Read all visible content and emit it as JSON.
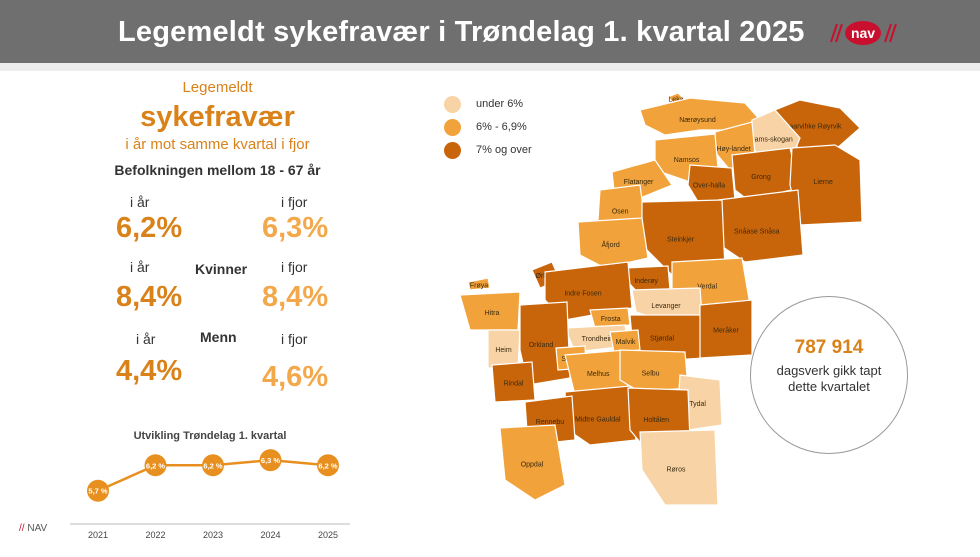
{
  "header": {
    "title": "Legemeldt sykefravær i Trøndelag 1. kvartal 2025",
    "logo_text": "nav"
  },
  "colors": {
    "header_bg": "#6f6f6f",
    "orange_dark": "#c8650a",
    "orange_mid": "#f2a23a",
    "orange_light": "#f8d3a5",
    "accent": "#d9821a",
    "nav_red": "#c8102e"
  },
  "left_panel": {
    "line1": "Legemeldt",
    "line2": "sykefravær",
    "line3": "i år mot samme kvartal i fjor",
    "population": "Befolkningen mellom 18 - 67 år",
    "label_this_year": "i år",
    "label_last_year": "i fjor",
    "total": {
      "this_year": "6,2%",
      "last_year": "6,3%"
    },
    "women": {
      "label": "Kvinner",
      "this_year": "8,4%",
      "last_year": "8,4%"
    },
    "men": {
      "label": "Menn",
      "this_year": "4,4%",
      "last_year": "4,6%"
    }
  },
  "chart_data": {
    "type": "line",
    "title": "Utvikling Trøndelag 1. kvartal",
    "categories": [
      "2021",
      "2022",
      "2023",
      "2024",
      "2025"
    ],
    "values": [
      5.7,
      6.2,
      6.2,
      6.3,
      6.2
    ],
    "labels": [
      "5,7 %",
      "6,2 %",
      "6,2 %",
      "6,3 %",
      "6,2 %"
    ],
    "ylim": [
      5.4,
      6.5
    ],
    "xlabel": "",
    "ylabel": ""
  },
  "footer": {
    "nav_text": "NAV",
    "slashes": "//"
  },
  "legend": [
    {
      "label": "under 6%",
      "color": "#f8d3a5"
    },
    {
      "label": "6% - 6,9%",
      "color": "#f2a23a"
    },
    {
      "label": "7% og over",
      "color": "#c8650a"
    }
  ],
  "municipalities": [
    {
      "name": "Leka",
      "color": "#f2a23a"
    },
    {
      "name": "Nærøysund",
      "color": "#f2a23a"
    },
    {
      "name": "Raarvihke Røyrvik",
      "color": "#c8650a"
    },
    {
      "name": "Nams-skogan",
      "color": "#f8d3a5"
    },
    {
      "name": "Høy-landet",
      "color": "#f2a23a"
    },
    {
      "name": "Namsos",
      "color": "#f2a23a"
    },
    {
      "name": "Flatanger",
      "color": "#f2a23a"
    },
    {
      "name": "Over-halla",
      "color": "#c8650a"
    },
    {
      "name": "Grong",
      "color": "#c8650a"
    },
    {
      "name": "Lierne",
      "color": "#c8650a"
    },
    {
      "name": "Osen",
      "color": "#f2a23a"
    },
    {
      "name": "Snåase Snåsa",
      "color": "#c8650a"
    },
    {
      "name": "Steinkjer",
      "color": "#c8650a"
    },
    {
      "name": "Åfjord",
      "color": "#f2a23a"
    },
    {
      "name": "Frøya",
      "color": "#f2a23a"
    },
    {
      "name": "Ørland",
      "color": "#c8650a"
    },
    {
      "name": "Inderøy",
      "color": "#c8650a"
    },
    {
      "name": "Indre Fosen",
      "color": "#c8650a"
    },
    {
      "name": "Verdal",
      "color": "#f2a23a"
    },
    {
      "name": "Levanger",
      "color": "#f8d3a5"
    },
    {
      "name": "Hitra",
      "color": "#f2a23a"
    },
    {
      "name": "Frosta",
      "color": "#f2a23a"
    },
    {
      "name": "Stjørdal",
      "color": "#c8650a"
    },
    {
      "name": "Trondheim",
      "color": "#f8d3a5"
    },
    {
      "name": "Malvik",
      "color": "#f2a23a"
    },
    {
      "name": "Meråker",
      "color": "#c8650a"
    },
    {
      "name": "Heim",
      "color": "#f8d3a5"
    },
    {
      "name": "Orkland",
      "color": "#c8650a"
    },
    {
      "name": "Skaun",
      "color": "#f2a23a"
    },
    {
      "name": "Melhus",
      "color": "#f2a23a"
    },
    {
      "name": "Selbu",
      "color": "#f2a23a"
    },
    {
      "name": "Rindal",
      "color": "#c8650a"
    },
    {
      "name": "Midtre Gauldal",
      "color": "#c8650a"
    },
    {
      "name": "Tydal",
      "color": "#f8d3a5"
    },
    {
      "name": "Rennebu",
      "color": "#c8650a"
    },
    {
      "name": "Holtålen",
      "color": "#c8650a"
    },
    {
      "name": "Oppdal",
      "color": "#f2a23a"
    },
    {
      "name": "Røros",
      "color": "#f8d3a5"
    }
  ],
  "summary": {
    "number": "787 914",
    "text": "dagsverk gikk tapt dette kvartalet"
  }
}
